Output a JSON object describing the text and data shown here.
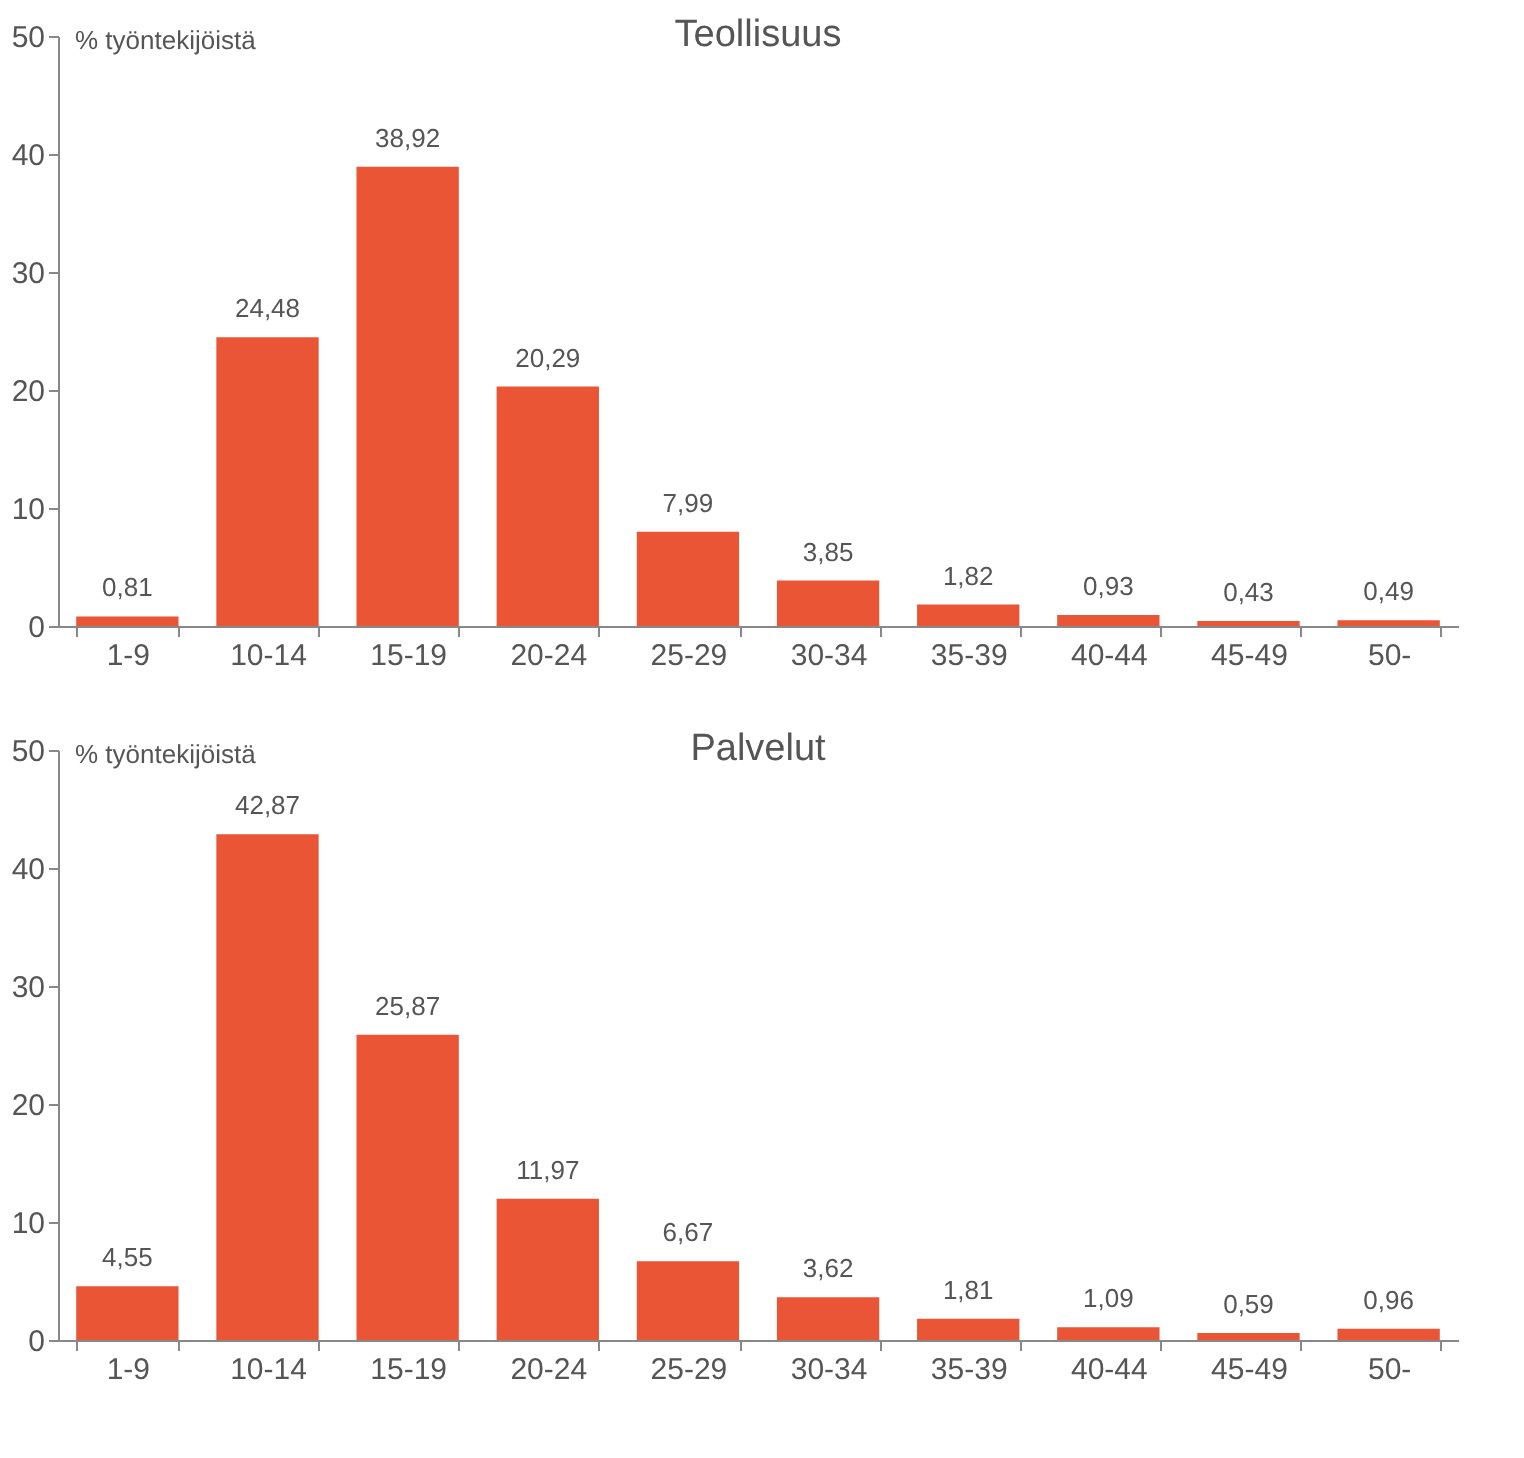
{
  "chart_data": [
    {
      "type": "bar",
      "title": "Teollisuus",
      "ylabel": "% työntekijöistä",
      "categories": [
        "1-9",
        "10-14",
        "15-19",
        "20-24",
        "25-29",
        "30-34",
        "35-39",
        "40-44",
        "45-49",
        "50-"
      ],
      "values": [
        0.81,
        24.48,
        38.92,
        20.29,
        7.99,
        3.85,
        1.82,
        0.93,
        0.43,
        0.49
      ],
      "value_labels": [
        "0,81",
        "24,48",
        "38,92",
        "20,29",
        "7,99",
        "3,85",
        "1,82",
        "0,93",
        "0,43",
        "0,49"
      ],
      "color": "#e95535",
      "ylim": [
        0,
        50
      ],
      "yticks": [
        0,
        10,
        20,
        30,
        40,
        50
      ],
      "grid": false
    },
    {
      "type": "bar",
      "title": "Palvelut",
      "ylabel": "% työntekijöistä",
      "categories": [
        "1-9",
        "10-14",
        "15-19",
        "20-24",
        "25-29",
        "30-34",
        "35-39",
        "40-44",
        "45-49",
        "50-"
      ],
      "values": [
        4.55,
        42.87,
        25.87,
        11.97,
        6.67,
        3.62,
        1.81,
        1.09,
        0.59,
        0.96
      ],
      "value_labels": [
        "4,55",
        "42,87",
        "25,87",
        "11,97",
        "6,67",
        "3,62",
        "1,81",
        "1,09",
        "0,59",
        "0,96"
      ],
      "color": "#e95535",
      "ylim": [
        0,
        50
      ],
      "yticks": [
        0,
        10,
        20,
        30,
        40,
        50
      ],
      "grid": false
    }
  ]
}
